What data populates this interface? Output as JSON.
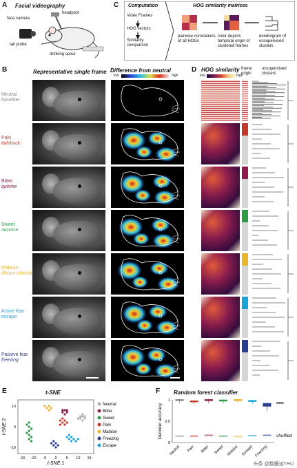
{
  "panel_A": {
    "letter": "A",
    "title": "Facial videography",
    "labels": {
      "face_camera": "face camera",
      "headpost": "headpost",
      "tail_probe": "tail probe",
      "drinking_spout": "drinking spout"
    }
  },
  "panel_C": {
    "letter": "C",
    "computation_title": "Computation",
    "hog_title": "HOG similarity matrices",
    "flow": [
      "Video Frames",
      "HOG vectors",
      "Similarity comparison"
    ],
    "step1": "pairwise correlations of all HOGs",
    "step2": "color depicts temporal origin of clustered frames",
    "step3": "dendrogram of unsupervised clusters"
  },
  "panel_B": {
    "letter": "B",
    "col1": "Representative single frame",
    "col2": "Difference from neutral",
    "colorbar_low": "low",
    "colorbar_high": "high",
    "rows": [
      {
        "name": "Neutral",
        "cond": "baseline",
        "color": "#888888"
      },
      {
        "name": "Pain",
        "cond": "tailshock",
        "color": "#c0392b"
      },
      {
        "name": "Bitter",
        "cond": "quinine",
        "color": "#8e1b4d"
      },
      {
        "name": "Sweet",
        "cond": "sucrose",
        "color": "#2e9a46"
      },
      {
        "name": "Malaise",
        "cond": "lithium chloride",
        "color": "#e8b628"
      },
      {
        "name": "Active fear",
        "cond": "escape",
        "color": "#1aa3d6"
      },
      {
        "name": "Passive fear",
        "cond": "freezing",
        "color": "#2b3d8f"
      }
    ]
  },
  "panel_D": {
    "letter": "D",
    "title": "HOG similarity",
    "colorbar_low": "low",
    "colorbar_high": "high",
    "col_origin": "frame origin",
    "col_clusters": "unsupervised clusters"
  },
  "panel_E": {
    "letter": "E",
    "title": "t-SNE",
    "xlabel": "t-SNE 1",
    "ylabel": "t-SNE 2",
    "xticks": [
      "-15",
      "-10",
      "-5",
      "0",
      "5",
      "10",
      "15"
    ],
    "yticks": [
      "10",
      "0",
      "-10"
    ],
    "legend": [
      {
        "name": "Neutral",
        "color": "#b0b0b0"
      },
      {
        "name": "Bitter",
        "color": "#8e1b4d"
      },
      {
        "name": "Sweet",
        "color": "#2e9a46"
      },
      {
        "name": "Pain",
        "color": "#c0392b"
      },
      {
        "name": "Malaise",
        "color": "#e8b628"
      },
      {
        "name": "Freezing",
        "color": "#2b3d8f"
      },
      {
        "name": "Escape",
        "color": "#1aa3d6"
      }
    ]
  },
  "panel_F": {
    "letter": "F",
    "title": "Random forest classifier",
    "ylabel": "Decoder accuracy",
    "yticks": [
      "1",
      "0.5",
      "0"
    ],
    "categories": [
      "Neutral",
      "Pain",
      "Bitter",
      "Sweet",
      "Malaise",
      "Escape",
      "Freezing"
    ],
    "colors": [
      "#888888",
      "#c0392b",
      "#8e1b4d",
      "#2e9a46",
      "#e8b628",
      "#1aa3d6",
      "#2b3d8f"
    ],
    "significance": "****",
    "shuffled_label": "shuffled",
    "watermark": "头条 @数据派THU"
  },
  "chart_data": [
    {
      "type": "scatter",
      "title": "t-SNE",
      "xlabel": "t-SNE 1",
      "ylabel": "t-SNE 2",
      "xlim": [
        -17,
        17
      ],
      "ylim": [
        -13,
        13
      ],
      "series": [
        {
          "name": "Neutral",
          "points": [
            [
              11,
              4
            ],
            [
              12,
              5
            ],
            [
              13,
              4
            ],
            [
              12,
              3
            ],
            [
              11,
              5
            ],
            [
              13,
              5
            ],
            [
              12,
              6
            ],
            [
              10,
              4
            ]
          ]
        },
        {
          "name": "Bitter",
          "points": [
            [
              3,
              7
            ],
            [
              4,
              8
            ],
            [
              5,
              7
            ],
            [
              4,
              6
            ],
            [
              5,
              8
            ],
            [
              3,
              8
            ]
          ]
        },
        {
          "name": "Sweet",
          "points": [
            [
              -12,
              2
            ],
            [
              -13,
              1
            ],
            [
              -12,
              0
            ],
            [
              -11,
              -1
            ],
            [
              -12,
              -2
            ],
            [
              -13,
              -3
            ],
            [
              -12,
              -4
            ],
            [
              -11,
              -5
            ],
            [
              -12,
              -6
            ],
            [
              -11,
              -7
            ]
          ]
        },
        {
          "name": "Pain",
          "points": [
            [
              2,
              3
            ],
            [
              3,
              2
            ],
            [
              4,
              3
            ],
            [
              2,
              1
            ],
            [
              3,
              4
            ],
            [
              5,
              2
            ],
            [
              4,
              1
            ]
          ]
        },
        {
          "name": "Malaise",
          "points": [
            [
              -4,
              9
            ],
            [
              -3,
              10
            ],
            [
              -2,
              9
            ],
            [
              -3,
              8
            ],
            [
              -5,
              10
            ]
          ]
        },
        {
          "name": "Freezing",
          "points": [
            [
              -2,
              -8
            ],
            [
              -1,
              -9
            ],
            [
              0,
              -8
            ],
            [
              1,
              -9
            ],
            [
              -1,
              -7
            ],
            [
              0,
              -10
            ]
          ]
        },
        {
          "name": "Escape",
          "points": [
            [
              5,
              -5
            ],
            [
              6,
              -6
            ],
            [
              7,
              -5
            ],
            [
              8,
              -6
            ],
            [
              9,
              -7
            ],
            [
              10,
              -6
            ],
            [
              6,
              -4
            ],
            [
              7,
              -7
            ]
          ]
        }
      ]
    },
    {
      "type": "bar",
      "title": "Random forest classifier",
      "ylabel": "Decoder accuracy",
      "ylim": [
        0,
        1
      ],
      "categories": [
        "Neutral",
        "Pain",
        "Bitter",
        "Sweet",
        "Malaise",
        "Escape",
        "Freezing"
      ],
      "series": [
        {
          "values": [
            0.99,
            0.96,
            0.99,
            0.98,
            0.99,
            0.97,
            0.9
          ]
        },
        {
          "name": "shuffled",
          "values": [
            0.15,
            0.15,
            0.17,
            0.15,
            0.14,
            0.16,
            0.17
          ]
        }
      ]
    }
  ]
}
